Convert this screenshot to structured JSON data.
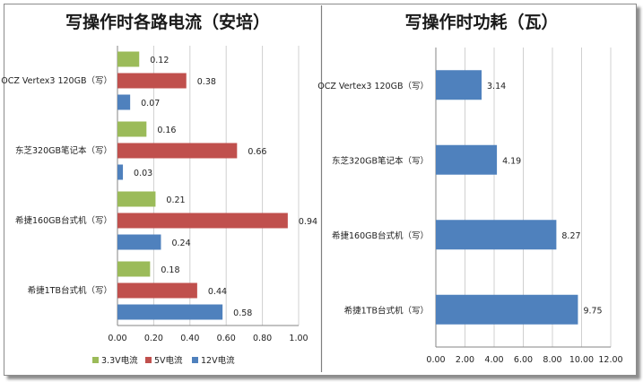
{
  "chart_data": [
    {
      "type": "bar",
      "orientation": "horizontal",
      "title": "写操作时各路电流（安培）",
      "categories": [
        "OCZ Vertex3 120GB（写）",
        "东芝320GB笔记本（写）",
        "希捷160GB台式机（写）",
        "希捷1TB台式机（写）"
      ],
      "series": [
        {
          "name": "3.3V电流",
          "color": "#9bbb59",
          "values": [
            0.12,
            0.16,
            0.21,
            0.18
          ],
          "labels": [
            "0.12",
            "0.16",
            "0.21",
            "0.18"
          ]
        },
        {
          "name": "5V电流",
          "color": "#c0504d",
          "values": [
            0.38,
            0.66,
            0.94,
            0.44
          ],
          "labels": [
            "0.38",
            "0.66",
            "0.94",
            "0.44"
          ]
        },
        {
          "name": "12V电流",
          "color": "#4f81bd",
          "values": [
            0.07,
            0.03,
            0.24,
            0.58
          ],
          "labels": [
            "0.07",
            "0.03",
            "0.24",
            "0.58"
          ]
        }
      ],
      "xlim": [
        0,
        1.0
      ],
      "xticks": [
        "0.00",
        "0.20",
        "0.40",
        "0.60",
        "0.80",
        "1.00"
      ],
      "grid": true,
      "legend": "bottom"
    },
    {
      "type": "bar",
      "orientation": "horizontal",
      "title": "写操作时功耗（瓦）",
      "categories": [
        "OCZ Vertex3 120GB（写）",
        "东芝320GB笔记本（写）",
        "希捷160GB台式机（写）",
        "希捷1TB台式机（写）"
      ],
      "series": [
        {
          "color": "#4f81bd",
          "values": [
            3.14,
            4.19,
            8.27,
            9.75
          ],
          "labels": [
            "3.14",
            "4.19",
            "8.27",
            "9.75"
          ]
        }
      ],
      "xlim": [
        0,
        12
      ],
      "xticks": [
        "0.00",
        "2.00",
        "4.00",
        "6.00",
        "8.00",
        "10.00",
        "12.00"
      ],
      "grid": true,
      "legend": "none"
    }
  ]
}
